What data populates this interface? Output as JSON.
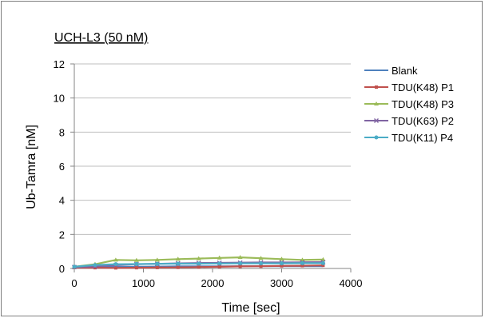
{
  "chart_data": {
    "type": "line",
    "title": "UCH-L3 (50 nM)",
    "xlabel": "Time [sec]",
    "ylabel": "Ub-Tamra [nM]",
    "xlim": [
      0,
      4000
    ],
    "ylim": [
      0,
      12
    ],
    "xticks": [
      0,
      1000,
      2000,
      3000,
      4000
    ],
    "yticks": [
      0,
      2,
      4,
      6,
      8,
      10,
      12
    ],
    "grid": "horizontal",
    "legend_position": "right",
    "series": [
      {
        "name": "Blank",
        "color": "#4f81bd",
        "marker": "none",
        "x": [
          0,
          300,
          600,
          900,
          1200,
          1500,
          1800,
          2100,
          2400,
          2700,
          3000,
          3300,
          3600
        ],
        "y": [
          0.05,
          0.08,
          0.1,
          0.1,
          0.11,
          0.12,
          0.12,
          0.12,
          0.13,
          0.13,
          0.13,
          0.13,
          0.13
        ]
      },
      {
        "name": "TDU(K48) P1",
        "color": "#c0504d",
        "marker": "square",
        "x": [
          0,
          300,
          600,
          900,
          1200,
          1500,
          1800,
          2100,
          2400,
          2700,
          3000,
          3300,
          3600
        ],
        "y": [
          0.05,
          0.04,
          0.03,
          0.04,
          0.05,
          0.06,
          0.08,
          0.1,
          0.12,
          0.13,
          0.15,
          0.16,
          0.18
        ]
      },
      {
        "name": "TDU(K48) P3",
        "color": "#9bbb59",
        "marker": "triangle",
        "x": [
          0,
          300,
          600,
          900,
          1200,
          1500,
          1800,
          2100,
          2400,
          2700,
          3000,
          3300,
          3600
        ],
        "y": [
          0.1,
          0.25,
          0.5,
          0.48,
          0.5,
          0.55,
          0.58,
          0.62,
          0.65,
          0.6,
          0.55,
          0.5,
          0.52
        ]
      },
      {
        "name": "TDU(K63) P2",
        "color": "#8064a2",
        "marker": "x",
        "x": [
          0,
          300,
          600,
          900,
          1200,
          1500,
          1800,
          2100,
          2400,
          2700,
          3000,
          3300,
          3600
        ],
        "y": [
          0.08,
          0.12,
          0.2,
          0.25,
          0.27,
          0.3,
          0.32,
          0.33,
          0.34,
          0.35,
          0.35,
          0.36,
          0.37
        ]
      },
      {
        "name": "TDU(K11) P4",
        "color": "#4bacc6",
        "marker": "circle",
        "x": [
          0,
          300,
          600,
          900,
          1200,
          1500,
          1800,
          2100,
          2400,
          2700,
          3000,
          3300,
          3600
        ],
        "y": [
          0.1,
          0.2,
          0.25,
          0.26,
          0.27,
          0.28,
          0.28,
          0.29,
          0.3,
          0.3,
          0.3,
          0.31,
          0.31
        ]
      }
    ]
  }
}
